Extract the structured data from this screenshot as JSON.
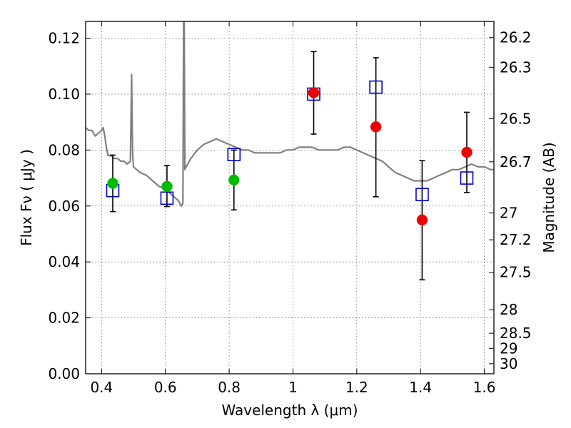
{
  "chart_data": {
    "type": "scatter",
    "title": "",
    "xlabel": "Wavelength  λ (μm)",
    "ylabel": "Flux  Fν  ( μJy )",
    "y2label": "Magnitude (AB)",
    "xlim": [
      0.35,
      1.63
    ],
    "ylim": [
      0.0,
      0.126
    ],
    "grid": true,
    "x_ticks": [
      0.4,
      0.6,
      0.8,
      1.0,
      1.2,
      1.4,
      1.6
    ],
    "x_tick_labels": [
      "0.4",
      "0.6",
      "0.8",
      "1",
      "1.2",
      "1.4",
      "1.6"
    ],
    "y_ticks": [
      0.0,
      0.02,
      0.04,
      0.06,
      0.08,
      0.1,
      0.12
    ],
    "y_tick_labels": [
      "0.00",
      "0.02",
      "0.04",
      "0.06",
      "0.08",
      "0.10",
      "0.12"
    ],
    "mag_ticks": [
      {
        "label": "26.2",
        "flux": 0.1202
      },
      {
        "label": "26.3",
        "flux": 0.1096
      },
      {
        "label": "26.5",
        "flux": 0.0912
      },
      {
        "label": "26.7",
        "flux": 0.0758
      },
      {
        "label": "27",
        "flux": 0.0575
      },
      {
        "label": "27.2",
        "flux": 0.0479
      },
      {
        "label": "27.5",
        "flux": 0.0363
      },
      {
        "label": "28",
        "flux": 0.0229
      },
      {
        "label": "28.5",
        "flux": 0.0145
      },
      {
        "label": "29",
        "flux": 0.0091
      },
      {
        "label": "30",
        "flux": 0.0036
      }
    ],
    "series": [
      {
        "name": "",
        "kind": "line",
        "color": "#808080",
        "x": [
          0.35,
          0.36,
          0.37,
          0.38,
          0.39,
          0.4,
          0.405,
          0.41,
          0.415,
          0.42,
          0.43,
          0.44,
          0.45,
          0.46,
          0.47,
          0.48,
          0.49,
          0.492,
          0.494,
          0.497,
          0.5,
          0.52,
          0.54,
          0.56,
          0.58,
          0.6,
          0.62,
          0.64,
          0.65,
          0.655,
          0.657,
          0.659,
          0.661,
          0.665,
          0.67,
          0.68,
          0.7,
          0.72,
          0.74,
          0.76,
          0.78,
          0.8,
          0.82,
          0.84,
          0.86,
          0.88,
          0.9,
          0.92,
          0.94,
          0.96,
          0.98,
          1.0,
          1.02,
          1.04,
          1.06,
          1.08,
          1.1,
          1.12,
          1.14,
          1.16,
          1.18,
          1.2,
          1.22,
          1.24,
          1.26,
          1.28,
          1.3,
          1.32,
          1.34,
          1.36,
          1.38,
          1.4,
          1.42,
          1.44,
          1.46,
          1.48,
          1.5,
          1.52,
          1.54,
          1.56,
          1.58,
          1.6,
          1.62,
          1.63
        ],
        "y": [
          0.088,
          0.087,
          0.087,
          0.085,
          0.086,
          0.087,
          0.088,
          0.085,
          0.081,
          0.078,
          0.078,
          0.077,
          0.077,
          0.076,
          0.076,
          0.075,
          0.076,
          0.09,
          0.107,
          0.079,
          0.074,
          0.072,
          0.071,
          0.069,
          0.067,
          0.066,
          0.064,
          0.062,
          0.06,
          0.061,
          0.126,
          0.126,
          0.073,
          0.074,
          0.075,
          0.077,
          0.08,
          0.082,
          0.083,
          0.084,
          0.083,
          0.082,
          0.081,
          0.08,
          0.08,
          0.079,
          0.079,
          0.079,
          0.079,
          0.079,
          0.08,
          0.08,
          0.081,
          0.081,
          0.081,
          0.08,
          0.08,
          0.08,
          0.08,
          0.081,
          0.081,
          0.08,
          0.079,
          0.078,
          0.077,
          0.076,
          0.074,
          0.072,
          0.071,
          0.07,
          0.069,
          0.069,
          0.069,
          0.07,
          0.071,
          0.072,
          0.073,
          0.073,
          0.074,
          0.075,
          0.074,
          0.074,
          0.073,
          0.073
        ]
      },
      {
        "name": "",
        "kind": "open-square",
        "color": "#0000cc",
        "x": [
          0.435,
          0.605,
          0.815,
          1.065,
          1.26,
          1.405,
          1.545
        ],
        "y": [
          0.0655,
          0.0628,
          0.0784,
          0.1,
          0.1025,
          0.0641,
          0.07
        ]
      },
      {
        "name": "",
        "kind": "circle",
        "color": "#00bb00",
        "x": [
          0.435,
          0.605,
          0.815
        ],
        "y": [
          0.0681,
          0.067,
          0.0693
        ]
      },
      {
        "name": "",
        "kind": "circle",
        "color": "#ee0000",
        "x": [
          1.065,
          1.26,
          1.405,
          1.545
        ],
        "y": [
          0.1005,
          0.0883,
          0.055,
          0.0792
        ]
      }
    ],
    "error_bars": {
      "color": "#000000",
      "items": [
        {
          "x": 0.435,
          "low": 0.058,
          "high": 0.0782
        },
        {
          "x": 0.605,
          "low": 0.0598,
          "high": 0.0745
        },
        {
          "x": 0.815,
          "low": 0.0586,
          "high": 0.08
        },
        {
          "x": 1.065,
          "low": 0.0857,
          "high": 0.1152
        },
        {
          "x": 1.26,
          "low": 0.0633,
          "high": 0.113
        },
        {
          "x": 1.405,
          "low": 0.0336,
          "high": 0.0762
        },
        {
          "x": 1.545,
          "low": 0.0648,
          "high": 0.0935
        }
      ]
    }
  }
}
